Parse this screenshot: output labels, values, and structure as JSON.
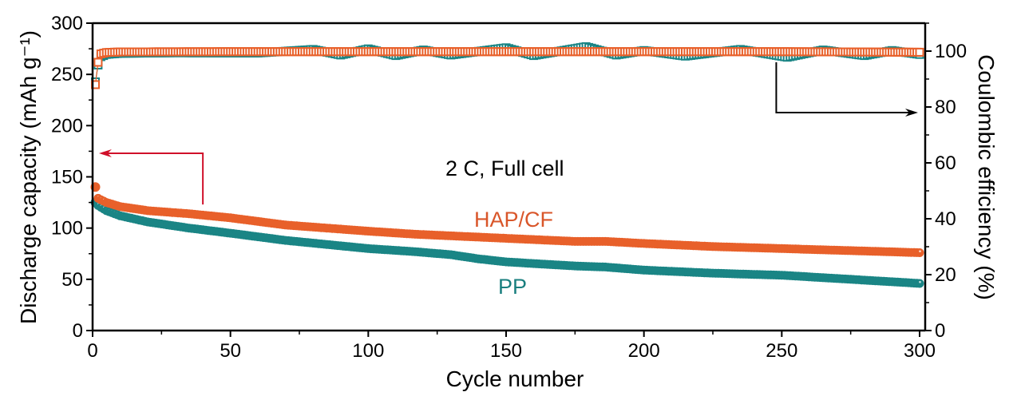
{
  "chart_data": {
    "type": "scatter",
    "title": "",
    "annotation": "2 C, Full cell",
    "xlabel": "Cycle number",
    "ylabel_left": "Discharge capacity (mAh g⁻¹)",
    "ylabel_right": "Coulombic efficiency (%)",
    "xlim": [
      0,
      302
    ],
    "ylim_left": [
      0,
      300
    ],
    "ylim_right": [
      0,
      110
    ],
    "x_ticks": [
      "0",
      "50",
      "100",
      "150",
      "200",
      "250",
      "300"
    ],
    "x_tick_values": [
      0,
      50,
      100,
      150,
      200,
      250,
      300
    ],
    "y_left_ticks": [
      "0",
      "50",
      "100",
      "150",
      "200",
      "250",
      "300"
    ],
    "y_left_tick_values": [
      0,
      50,
      100,
      150,
      200,
      250,
      300
    ],
    "y_right_ticks": [
      "0",
      "20",
      "40",
      "60",
      "80",
      "100"
    ],
    "y_right_tick_values": [
      0,
      20,
      40,
      60,
      80,
      100
    ],
    "grid": false,
    "legend": "none (inline series labels)",
    "colors": {
      "HAP/CF": "#e8602a",
      "PP": "#1a8585",
      "left_arrow": "#d0102a",
      "right_arrow": "#000000"
    },
    "series": [
      {
        "name": "HAP/CF",
        "label": "HAP/CF",
        "axis": "left",
        "kind": "discharge_capacity",
        "marker": "circle",
        "points": [
          [
            1,
            140
          ],
          [
            2,
            129
          ],
          [
            5,
            125
          ],
          [
            10,
            121
          ],
          [
            20,
            117
          ],
          [
            35,
            114
          ],
          [
            50,
            110
          ],
          [
            70,
            103
          ],
          [
            100,
            97
          ],
          [
            117,
            94
          ],
          [
            150,
            90
          ],
          [
            175,
            87
          ],
          [
            186,
            87
          ],
          [
            200,
            85
          ],
          [
            225,
            82
          ],
          [
            250,
            80
          ],
          [
            275,
            78
          ],
          [
            300,
            76
          ]
        ]
      },
      {
        "name": "PP",
        "label": "PP",
        "axis": "left",
        "kind": "discharge_capacity",
        "marker": "circle",
        "points": [
          [
            1,
            125
          ],
          [
            2,
            122
          ],
          [
            5,
            117
          ],
          [
            10,
            112
          ],
          [
            20,
            106
          ],
          [
            35,
            100
          ],
          [
            50,
            95
          ],
          [
            70,
            88
          ],
          [
            100,
            80
          ],
          [
            117,
            77
          ],
          [
            130,
            74
          ],
          [
            140,
            70
          ],
          [
            150,
            67
          ],
          [
            175,
            63
          ],
          [
            186,
            62
          ],
          [
            200,
            59
          ],
          [
            225,
            56
          ],
          [
            250,
            54
          ],
          [
            275,
            50
          ],
          [
            300,
            46
          ]
        ]
      },
      {
        "name": "HAP/CF CE",
        "axis": "right",
        "kind": "coulombic_efficiency",
        "marker": "square",
        "points": [
          [
            1,
            88
          ],
          [
            2,
            96
          ],
          [
            3,
            99
          ],
          [
            5,
            99.5
          ],
          [
            10,
            99.7
          ],
          [
            50,
            99.8
          ],
          [
            100,
            99.8
          ],
          [
            150,
            99.8
          ],
          [
            200,
            99.8
          ],
          [
            250,
            99.8
          ],
          [
            300,
            99.6
          ]
        ]
      },
      {
        "name": "PP CE",
        "axis": "right",
        "kind": "coulombic_efficiency",
        "marker": "square",
        "points": [
          [
            1,
            89
          ],
          [
            2,
            95
          ],
          [
            3,
            98
          ],
          [
            5,
            98.8
          ],
          [
            10,
            99.2
          ],
          [
            30,
            99.4
          ],
          [
            60,
            99.3
          ],
          [
            80,
            100.6
          ],
          [
            90,
            98.6
          ],
          [
            100,
            100.8
          ],
          [
            110,
            98.4
          ],
          [
            120,
            100.4
          ],
          [
            130,
            98.6
          ],
          [
            150,
            101.2
          ],
          [
            160,
            98.4
          ],
          [
            179,
            101.6
          ],
          [
            190,
            98.6
          ],
          [
            200,
            100.2
          ],
          [
            215,
            98.2
          ],
          [
            235,
            100.6
          ],
          [
            252,
            97.8
          ],
          [
            265,
            100.4
          ],
          [
            280,
            98.4
          ],
          [
            290,
            100.2
          ],
          [
            300,
            98.8
          ]
        ]
      }
    ],
    "series_labels": [
      {
        "text": "HAP/CF",
        "series": "HAP/CF"
      },
      {
        "text": "PP",
        "series": "PP"
      }
    ],
    "arrows": [
      {
        "name": "left-axis-arrow",
        "points_to": "left",
        "from_x": 40,
        "from_y_left": 123,
        "corner_y_left": 173,
        "to_x": 2.3
      },
      {
        "name": "right-axis-arrow",
        "points_to": "right",
        "from_x": 248,
        "from_y_right": 96,
        "corner_y_right": 78,
        "to_x": 300
      }
    ]
  }
}
